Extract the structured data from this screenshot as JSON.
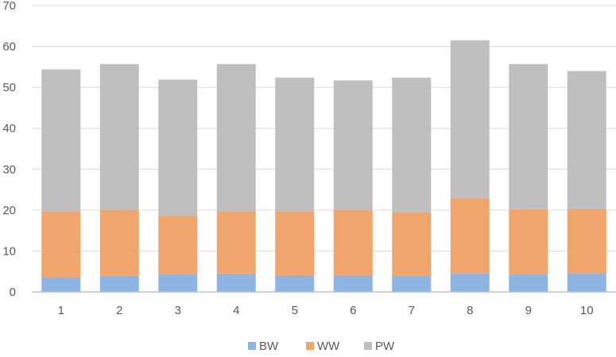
{
  "chart_data": {
    "type": "bar",
    "stacked": true,
    "title": "",
    "xlabel": "",
    "ylabel": "",
    "categories": [
      "1",
      "2",
      "3",
      "4",
      "5",
      "6",
      "7",
      "8",
      "9",
      "10"
    ],
    "series": [
      {
        "name": "BW",
        "color": "#8db4e2",
        "values": [
          3.5,
          3.9,
          4.3,
          4.5,
          4.1,
          4.1,
          3.9,
          4.6,
          4.3,
          4.6
        ]
      },
      {
        "name": "WW",
        "color": "#f0a56d",
        "values": [
          16.2,
          16.2,
          14.3,
          15.2,
          15.6,
          16.0,
          15.5,
          18.3,
          15.9,
          15.8
        ]
      },
      {
        "name": "PW",
        "color": "#bfbfbf",
        "values": [
          34.7,
          35.6,
          33.3,
          36.0,
          32.7,
          31.6,
          33.0,
          38.6,
          35.5,
          33.6
        ]
      }
    ],
    "ylim": [
      0,
      70
    ],
    "yticks": [
      "0",
      "10",
      "20",
      "30",
      "40",
      "50",
      "60",
      "70"
    ],
    "grid": true,
    "legend_position": "bottom"
  }
}
